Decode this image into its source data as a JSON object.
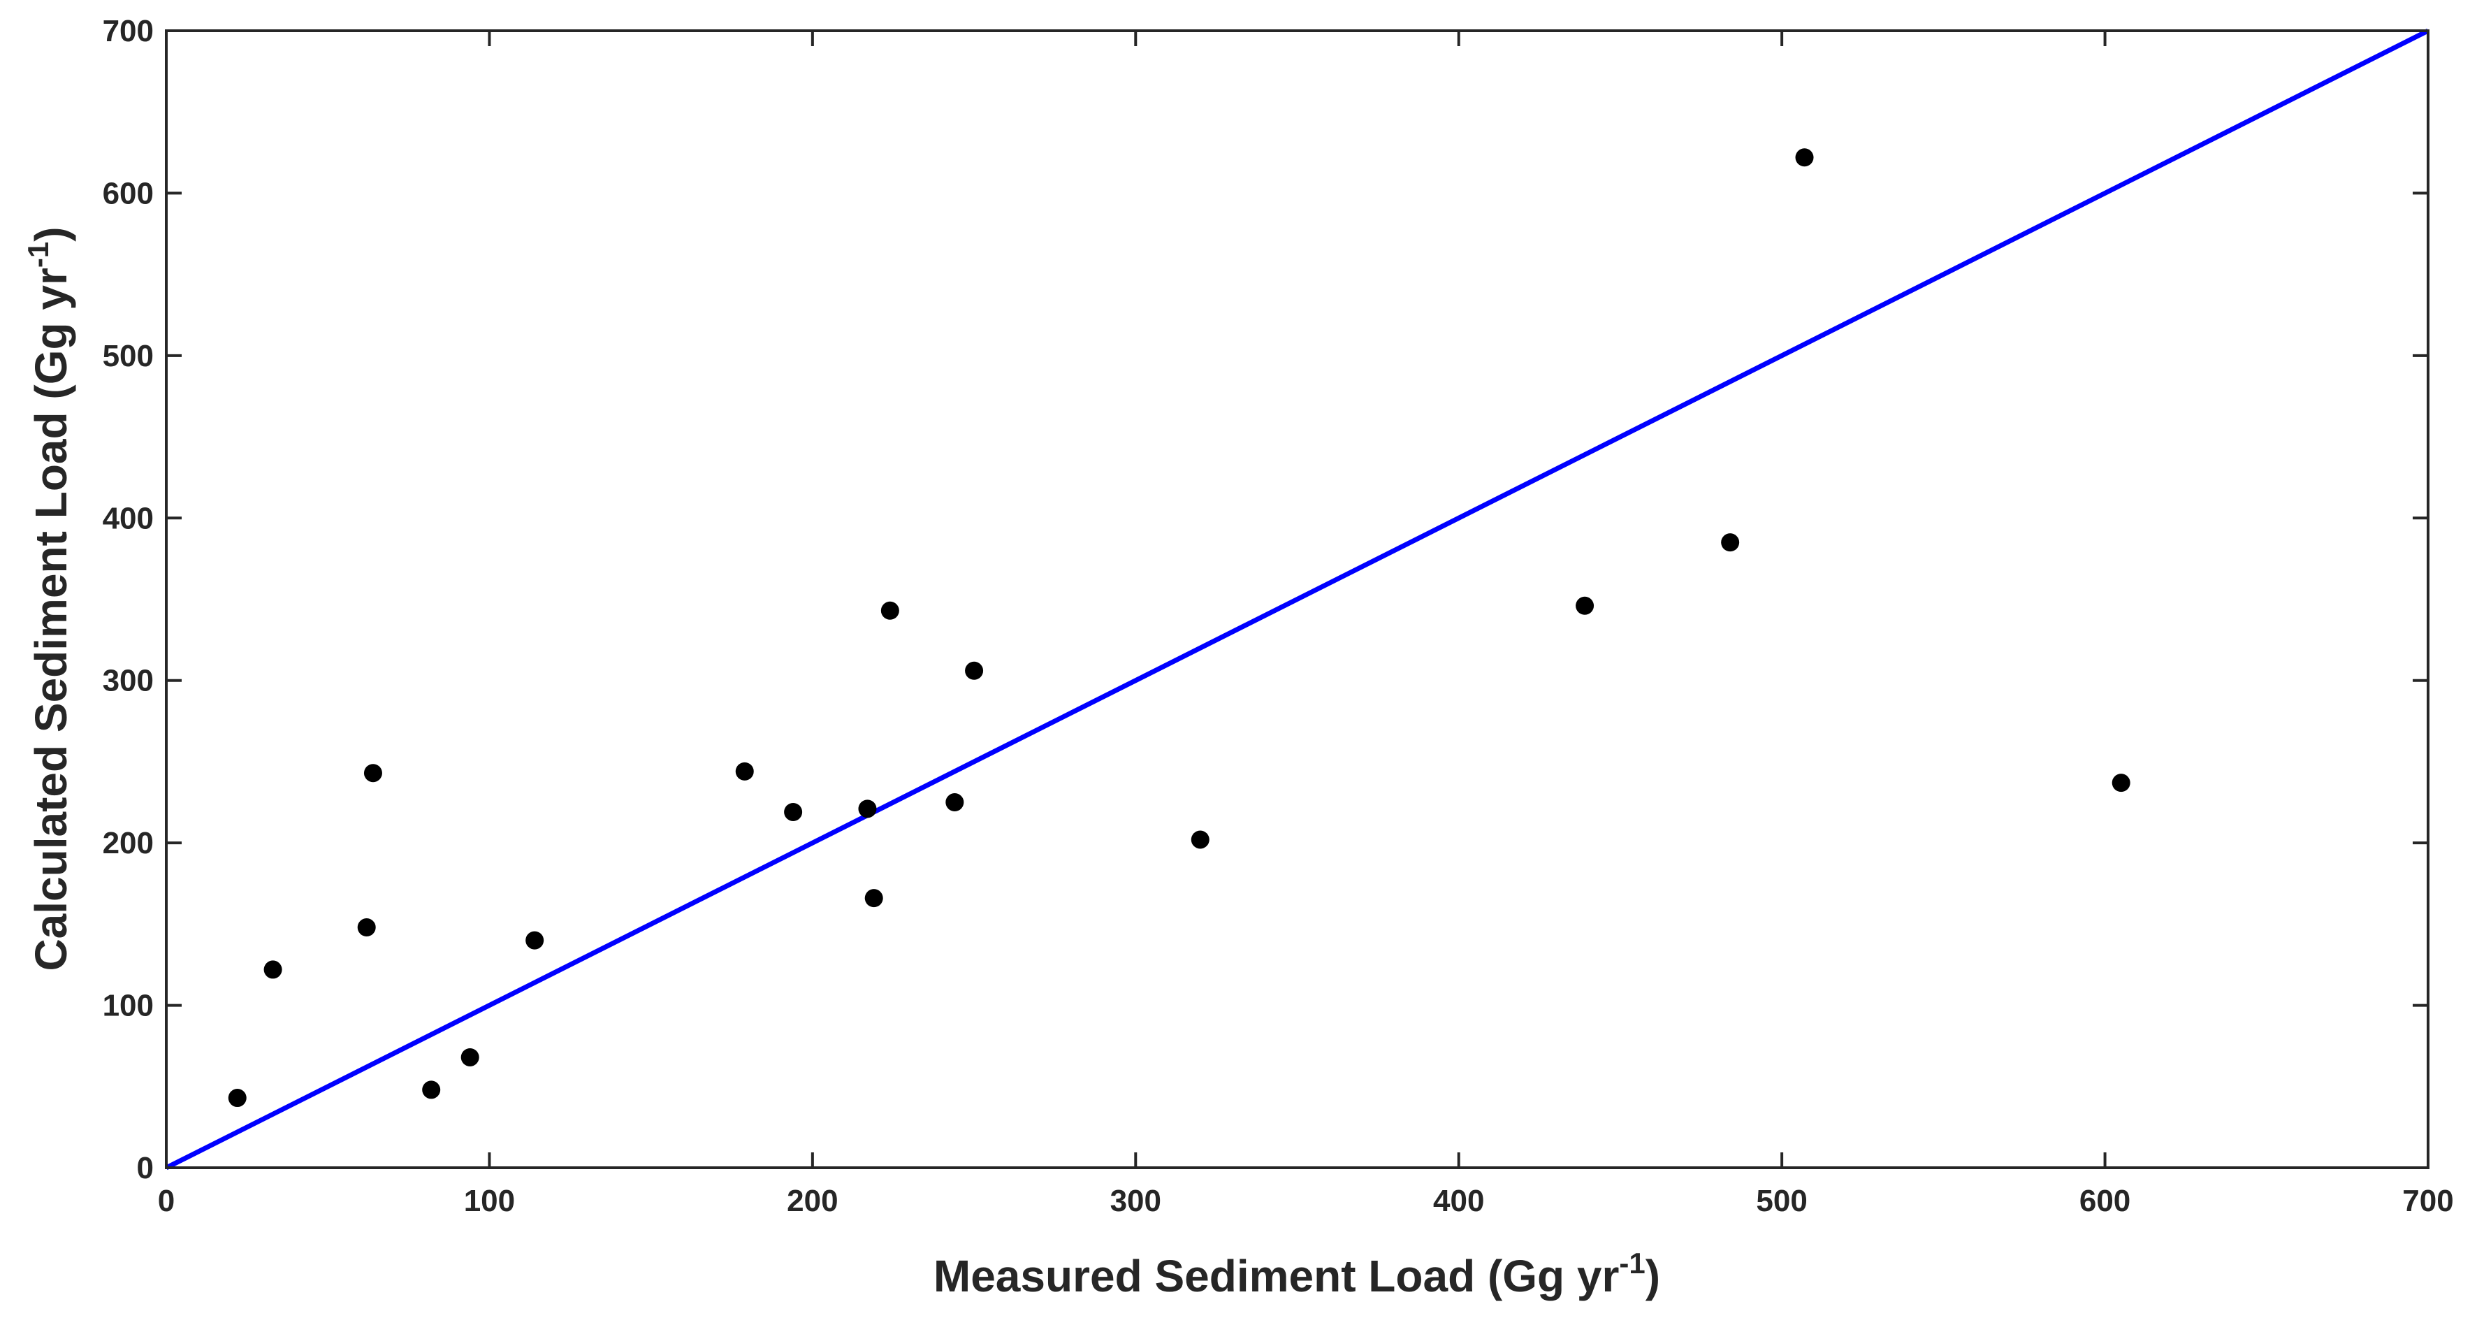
{
  "chart_data": {
    "type": "scatter",
    "xlabel": "Measured Sediment Load (Gg yr",
    "xlabel_sup": "-1",
    "xlabel_end": ")",
    "ylabel": "Calculated Sediment Load (Gg yr",
    "ylabel_sup": "-1",
    "ylabel_end": ")",
    "xlim": [
      0,
      700
    ],
    "ylim": [
      0,
      700
    ],
    "xticks": [
      "0",
      "100",
      "200",
      "300",
      "400",
      "500",
      "600",
      "700"
    ],
    "yticks": [
      "0",
      "100",
      "200",
      "300",
      "400",
      "500",
      "600",
      "700"
    ],
    "grid": false,
    "marker_color": "#000000",
    "line_color": "#0000ff",
    "reference_line": {
      "x": [
        0,
        700
      ],
      "y": [
        0,
        700
      ]
    },
    "points": [
      {
        "x": 22,
        "y": 43
      },
      {
        "x": 33,
        "y": 122
      },
      {
        "x": 62,
        "y": 148
      },
      {
        "x": 64,
        "y": 243
      },
      {
        "x": 82,
        "y": 48
      },
      {
        "x": 94,
        "y": 68
      },
      {
        "x": 114,
        "y": 140
      },
      {
        "x": 179,
        "y": 244
      },
      {
        "x": 194,
        "y": 219
      },
      {
        "x": 217,
        "y": 221
      },
      {
        "x": 219,
        "y": 166
      },
      {
        "x": 224,
        "y": 343
      },
      {
        "x": 244,
        "y": 225
      },
      {
        "x": 250,
        "y": 306
      },
      {
        "x": 320,
        "y": 202
      },
      {
        "x": 439,
        "y": 346
      },
      {
        "x": 484,
        "y": 385
      },
      {
        "x": 507,
        "y": 622
      },
      {
        "x": 605,
        "y": 237
      }
    ]
  }
}
